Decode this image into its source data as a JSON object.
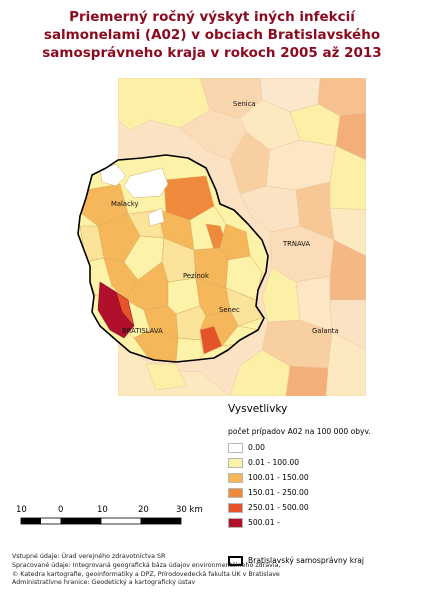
{
  "title": {
    "line1": "Priemerný ročný výskyt iných infekcií",
    "line2": "salmonelami (A02) v obciach Bratislavského",
    "line3": "samosprávneho kraja v rokoch 2005 až 2013"
  },
  "places": {
    "senica": "Senica",
    "malacky": "Malacky",
    "trnava": "TRNAVA",
    "pezinok": "Pezinok",
    "senec": "Senec",
    "bratislava": "BRATISLAVA",
    "galanta": "Galanta"
  },
  "legend": {
    "title": "Vysvetlivky",
    "subtitle": "počet prípadov A02 na 100 000 obyv.",
    "classes": [
      {
        "label": "0.00",
        "color": "#ffffff"
      },
      {
        "label": "0.01 - 100.00",
        "color": "#fdf3a8"
      },
      {
        "label": "100.01 - 150.00",
        "color": "#f5b75a"
      },
      {
        "label": "150.01 - 250.00",
        "color": "#ef8a3c"
      },
      {
        "label": "250.01 - 500.00",
        "color": "#e5532a"
      },
      {
        "label": "500.01 -",
        "color": "#b0102c"
      }
    ],
    "boundary_label": "Bratislavský samosprávny kraj"
  },
  "scale": {
    "labels": [
      "10",
      "0",
      "10",
      "20",
      "30 km"
    ]
  },
  "credits": [
    "Vstupné údaje: Úrad verejného zdravotníctva SR",
    "Spracované údaje: Integrovaná geografická báza údajov environmentálneho zdravia,",
    "© Katedra kartografie, geoinformatiky a DPZ, Prírodovedecká fakulta UK v Bratislave",
    "Administratívne hranice: Geodetický a kartografický ústav"
  ]
}
